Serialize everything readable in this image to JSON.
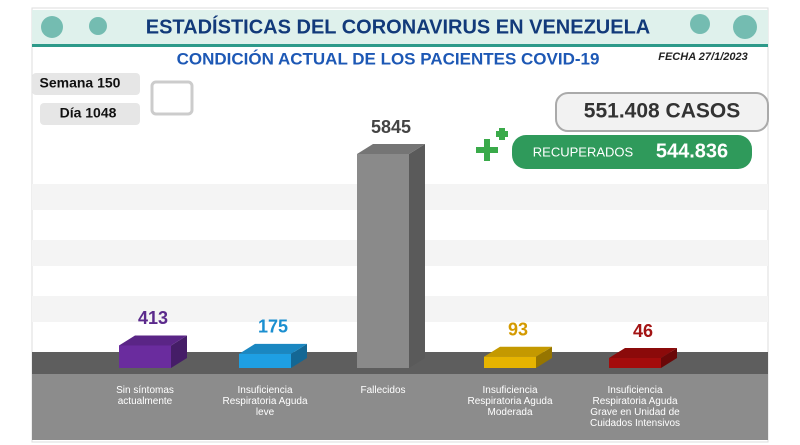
{
  "chart_data": {
    "type": "bar3d",
    "title": "ESTADÍSTICAS DEL CORONAVIRUS EN VENEZUELA",
    "subtitle": "CONDICIÓN ACTUAL DE LOS PACIENTES COVID-19",
    "date": "FECHA 27/1/2023",
    "week": "Semana 150",
    "day": "Día 1048",
    "cases": "551.408 CASOS",
    "recovered_label": "RECUPERADOS",
    "recovered_value": "544.836",
    "categories": [
      "Sin síntomas\nactualmente",
      "Insuficiencia\nRespiratoria Aguda\nleve",
      "Fallecidos",
      "Insuficiencia\nRespiratoria Aguda\nModerada",
      "Insuficiencia\nRespiratoria Aguda\nGrave en Unidad de\nCuidados Intensivos"
    ],
    "values": [
      413,
      175,
      5845,
      93,
      46
    ],
    "colors": [
      "#6a2c9e",
      "#1e9fe3",
      "#8a8a8a",
      "#e6b400",
      "#a30c0c"
    ],
    "label_colors": [
      "#5b2a8c",
      "#1b8fd0",
      "#444444",
      "#d49a00",
      "#a31414"
    ]
  }
}
